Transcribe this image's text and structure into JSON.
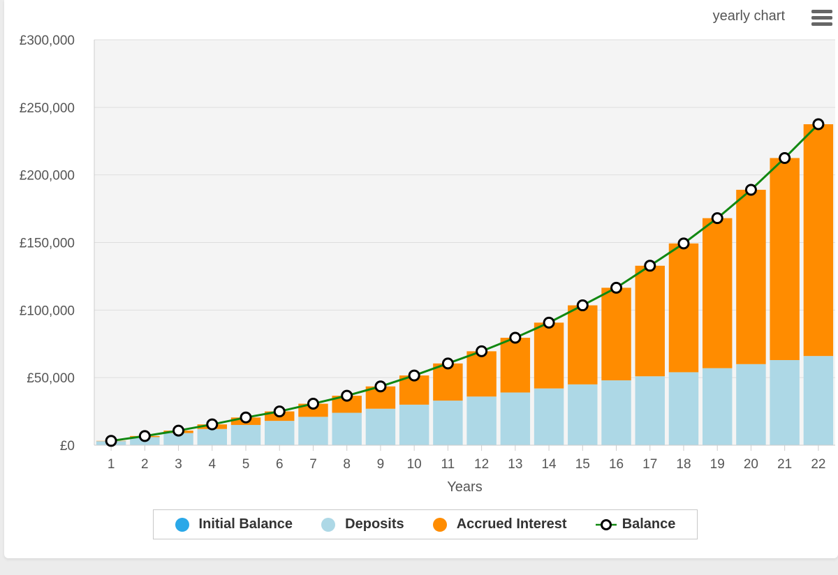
{
  "header": {
    "title": "yearly chart",
    "menu_icon": "hamburger-menu-icon"
  },
  "colors": {
    "initial": "#2aa8e8",
    "deposits": "#add8e6",
    "interest": "#ff8c00",
    "balance_line": "#118811",
    "plot_bg": "#f4f4f4",
    "grid": "#dddddd"
  },
  "chart_data": {
    "type": "bar",
    "stacked": true,
    "xlabel": "Years",
    "ylabel": "",
    "ylim": [
      0,
      300000
    ],
    "yticks": [
      0,
      50000,
      100000,
      150000,
      200000,
      250000,
      300000
    ],
    "ytick_labels": [
      "£0",
      "£50,000",
      "£100,000",
      "£150,000",
      "£200,000",
      "£250,000",
      "£300,000"
    ],
    "categories": [
      "1",
      "2",
      "3",
      "4",
      "5",
      "6",
      "7",
      "8",
      "9",
      "10",
      "11",
      "12",
      "13",
      "14",
      "15",
      "16",
      "17",
      "18",
      "19",
      "20",
      "21",
      "22"
    ],
    "series": [
      {
        "name": "Initial Balance",
        "type": "bar",
        "values": [
          0,
          0,
          0,
          0,
          0,
          0,
          0,
          0,
          0,
          0,
          0,
          0,
          0,
          0,
          0,
          0,
          0,
          0,
          0,
          0,
          0,
          0
        ]
      },
      {
        "name": "Deposits",
        "type": "bar",
        "values": [
          3000,
          6000,
          9000,
          12000,
          15000,
          18000,
          21000,
          24000,
          27000,
          30000,
          33000,
          36000,
          39000,
          42000,
          45000,
          48000,
          51000,
          54000,
          57000,
          60000,
          63000,
          66000
        ]
      },
      {
        "name": "Accrued Interest",
        "type": "bar",
        "values": [
          200,
          800,
          1800,
          3400,
          5500,
          7000,
          9700,
          12600,
          16500,
          21600,
          27500,
          33500,
          40500,
          48700,
          58500,
          68500,
          81800,
          95300,
          111000,
          129000,
          149500,
          171500
        ]
      },
      {
        "name": "Balance",
        "type": "line",
        "values": [
          3200,
          6800,
          10800,
          15400,
          20500,
          25000,
          30700,
          36600,
          43500,
          51600,
          60500,
          69500,
          79500,
          90700,
          103500,
          116500,
          132800,
          149300,
          168000,
          189000,
          212500,
          237500
        ]
      }
    ],
    "legend": "bottom"
  }
}
